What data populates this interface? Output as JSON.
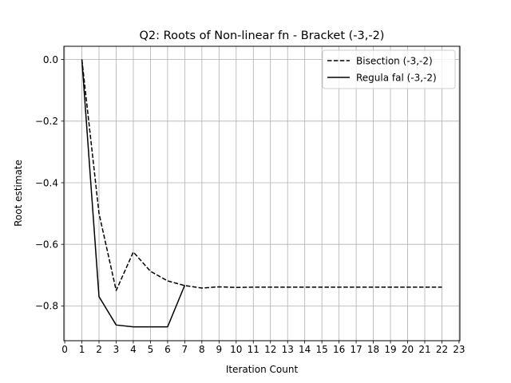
{
  "chart_data": {
    "type": "line",
    "title": "Q2: Roots of Non-linear fn - Bracket (-3,-2)",
    "xlabel": "Iteration Count",
    "ylabel": "Root estimate",
    "xlim": [
      -0.05,
      23.05
    ],
    "ylim": [
      -0.913,
      0.043
    ],
    "x_ticks": [
      0,
      1,
      2,
      3,
      4,
      5,
      6,
      7,
      8,
      9,
      10,
      11,
      12,
      13,
      14,
      15,
      16,
      17,
      18,
      19,
      20,
      21,
      22,
      23
    ],
    "y_ticks": [
      0.0,
      -0.2,
      -0.4,
      -0.6,
      -0.8
    ],
    "y_tick_labels": [
      "0.0",
      "−0.2",
      "−0.4",
      "−0.6",
      "−0.8"
    ],
    "grid": true,
    "legend_position": "top-right",
    "series": [
      {
        "name": "Bisection  (-3,-2)",
        "style": "dashed",
        "color": "#000000",
        "x": [
          1,
          2,
          3,
          4,
          5,
          6,
          7,
          8,
          9,
          10,
          11,
          12,
          13,
          14,
          15,
          16,
          17,
          18,
          19,
          20,
          21,
          22
        ],
        "y": [
          0.0,
          -0.5,
          -0.75,
          -0.625,
          -0.6875,
          -0.71875,
          -0.734,
          -0.742,
          -0.738,
          -0.74,
          -0.739,
          -0.739,
          -0.739,
          -0.739,
          -0.739,
          -0.739,
          -0.739,
          -0.739,
          -0.739,
          -0.739,
          -0.739,
          -0.739
        ]
      },
      {
        "name": "Regula fal (-3,-2)",
        "style": "solid",
        "color": "#000000",
        "x": [
          1,
          2,
          3,
          4,
          5,
          6,
          7
        ],
        "y": [
          0.0,
          -0.77,
          -0.862,
          -0.868,
          -0.868,
          -0.868,
          -0.733
        ]
      }
    ]
  }
}
